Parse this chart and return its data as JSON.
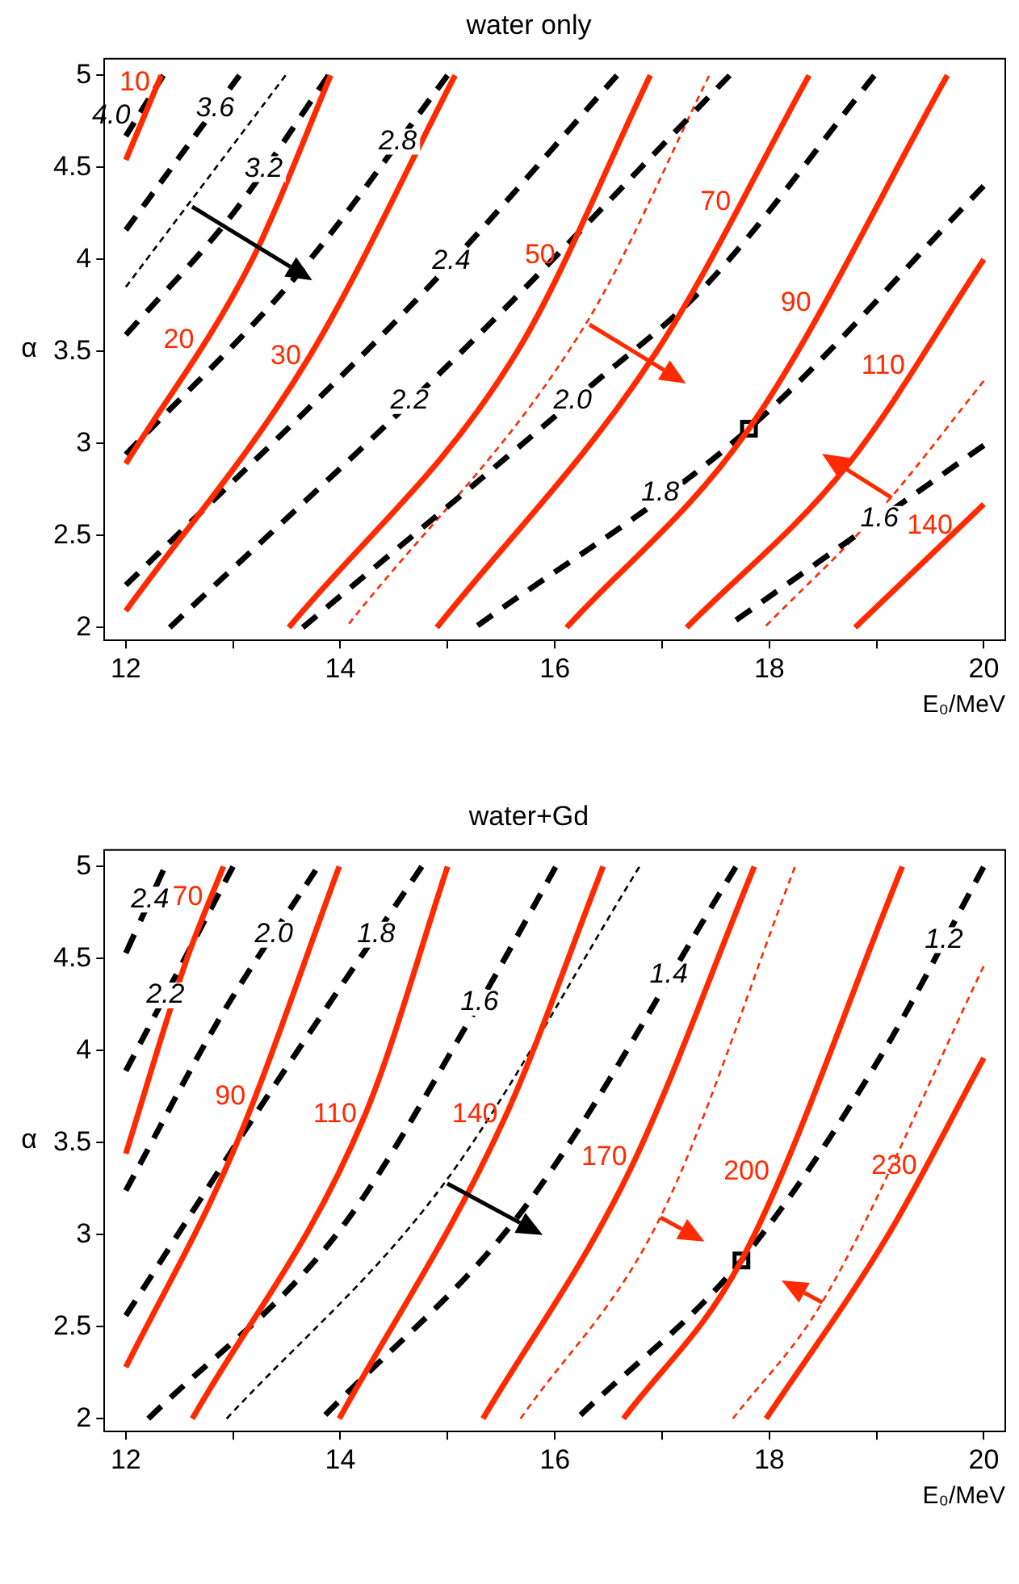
{
  "chart_data": [
    {
      "type": "line",
      "title": "water only",
      "xlabel": "E₀/MeV",
      "ylabel": "α",
      "xlim": [
        11.8,
        20.2
      ],
      "ylim": [
        1.93,
        5.09
      ],
      "xticks": [
        12,
        {
          "value": 13,
          "label": null
        },
        14,
        {
          "value": 15,
          "label": null
        },
        16,
        {
          "value": 17,
          "label": null
        },
        18,
        {
          "value": 19,
          "label": null
        },
        20
      ],
      "yticks": [
        2,
        2.5,
        3,
        3.5,
        4,
        4.5,
        5
      ],
      "grid": false,
      "legend": false,
      "marker": "none",
      "series": [
        {
          "name": "10",
          "color": "#ff2a00",
          "line_style": "solid",
          "x": [
            12,
            12.33
          ],
          "values": [
            4.54,
            5.0
          ]
        },
        {
          "name": "20",
          "color": "#ff2a00",
          "line_style": "solid",
          "x": [
            12,
            13.18,
            13.91
          ],
          "values": [
            2.89,
            4.0,
            5.0
          ]
        },
        {
          "name": "30",
          "color": "#ff2a00",
          "line_style": "solid",
          "x": [
            12,
            13.71,
            15.07
          ],
          "values": [
            2.09,
            3.47,
            5.0
          ]
        },
        {
          "name": "50",
          "color": "#ff2a00",
          "line_style": "solid",
          "x": [
            13.52,
            15.65,
            16.89
          ],
          "values": [
            2.0,
            3.5,
            5.0
          ]
        },
        {
          "name": "70",
          "color": "#ff2a00",
          "line_style": "solid",
          "x": [
            14.9,
            16.95,
            18.37
          ],
          "values": [
            2.0,
            3.5,
            5.0
          ]
        },
        {
          "name": "90",
          "color": "#ff2a00",
          "line_style": "solid",
          "x": [
            16.11,
            17.81,
            19.66
          ],
          "values": [
            2.0,
            3.08,
            5.0
          ]
        },
        {
          "name": "110",
          "color": "#ff2a00",
          "line_style": "solid",
          "x": [
            17.23,
            18.74,
            20
          ],
          "values": [
            2.0,
            2.89,
            4.0
          ]
        },
        {
          "name": "140",
          "color": "#ff2a00",
          "line_style": "solid",
          "x": [
            18.8,
            20
          ],
          "values": [
            2.0,
            2.67
          ]
        },
        {
          "name": "4.0",
          "color": "#000000",
          "line_style": "dashed",
          "x": [
            12,
            12.35
          ],
          "values": [
            4.67,
            5.0
          ]
        },
        {
          "name": "3.6",
          "color": "#000000",
          "line_style": "dashed",
          "x": [
            12,
            13.06
          ],
          "values": [
            4.16,
            5.0
          ]
        },
        {
          "name": "3.2",
          "color": "#000000",
          "line_style": "dashed",
          "x": [
            12,
            13.0,
            13.89
          ],
          "values": [
            3.59,
            4.25,
            5.0
          ]
        },
        {
          "name": "2.8",
          "color": "#000000",
          "line_style": "dashed",
          "x": [
            12,
            13.62,
            15.0
          ],
          "values": [
            2.94,
            3.93,
            5.0
          ]
        },
        {
          "name": "2.4",
          "color": "#000000",
          "line_style": "dashed",
          "x": [
            12,
            14.79,
            16.58
          ],
          "values": [
            2.23,
            3.83,
            5.0
          ]
        },
        {
          "name": "2.2",
          "color": "#000000",
          "line_style": "dashed",
          "x": [
            12.41,
            15.1,
            17.63
          ],
          "values": [
            2.0,
            3.48,
            5.0
          ]
        },
        {
          "name": "2.0",
          "color": "#000000",
          "line_style": "dashed",
          "x": [
            13.65,
            16.33,
            17.41,
            18.98
          ],
          "values": [
            2.0,
            3.31,
            3.86,
            5.0
          ]
        },
        {
          "name": "1.8",
          "color": "#000000",
          "line_style": "dashed",
          "x": [
            15.28,
            17.81,
            20
          ],
          "values": [
            2.01,
            3.08,
            4.4
          ]
        },
        {
          "name": "1.6",
          "color": "#000000",
          "line_style": "dashed",
          "x": [
            17.69,
            20
          ],
          "values": [
            2.04,
            2.99
          ]
        },
        {
          "color": "#ff2a00",
          "line_style": "dotted",
          "x": [
            14.08,
            16.3,
            17.44
          ],
          "values": [
            2.02,
            3.66,
            5.0
          ]
        },
        {
          "color": "#ff2a00",
          "line_style": "dotted",
          "x": [
            17.97,
            19.05,
            20
          ],
          "values": [
            2.01,
            2.65,
            3.34
          ]
        },
        {
          "color": "#000000",
          "line_style": "dotted",
          "x": [
            12,
            13.49
          ],
          "values": [
            3.85,
            5.0
          ]
        },
        {
          "type": "scatter",
          "color": "#000000",
          "marker": "square",
          "x": [
            17.81
          ],
          "values": [
            3.08
          ]
        }
      ]
    },
    {
      "type": "line",
      "title": "water+Gd",
      "xlabel": "E₀/MeV",
      "ylabel": "α",
      "xlim": [
        11.8,
        20.2
      ],
      "ylim": [
        1.93,
        5.09
      ],
      "xticks": [
        12,
        {
          "value": 13,
          "label": null
        },
        14,
        {
          "value": 15,
          "label": null
        },
        16,
        {
          "value": 17,
          "label": null
        },
        18,
        {
          "value": 19,
          "label": null
        },
        20
      ],
      "yticks": [
        2,
        2.5,
        3,
        3.5,
        4,
        4.5,
        5
      ],
      "grid": false,
      "legend": false,
      "marker": "none",
      "series": [
        {
          "name": "70",
          "color": "#ff2a00",
          "line_style": "solid",
          "x": [
            12,
            12.57,
            12.91
          ],
          "values": [
            3.44,
            4.5,
            5.0
          ]
        },
        {
          "name": "90",
          "color": "#ff2a00",
          "line_style": "solid",
          "x": [
            12,
            13.0,
            13.99
          ],
          "values": [
            2.28,
            3.45,
            5.0
          ]
        },
        {
          "name": "110",
          "color": "#ff2a00",
          "line_style": "solid",
          "x": [
            12.62,
            14.23,
            15.0
          ],
          "values": [
            2.0,
            3.65,
            5.0
          ]
        },
        {
          "name": "140",
          "color": "#ff2a00",
          "line_style": "solid",
          "x": [
            13.99,
            15.53,
            16.45
          ],
          "values": [
            2.0,
            3.63,
            5.0
          ]
        },
        {
          "name": "170",
          "color": "#ff2a00",
          "line_style": "solid",
          "x": [
            15.33,
            16.7,
            17.86
          ],
          "values": [
            2.0,
            3.35,
            5.0
          ]
        },
        {
          "name": "200",
          "color": "#ff2a00",
          "line_style": "solid",
          "x": [
            16.64,
            17.74,
            19.24
          ],
          "values": [
            2.0,
            2.86,
            5.0
          ]
        },
        {
          "name": "230",
          "color": "#ff2a00",
          "line_style": "solid",
          "x": [
            17.97,
            19.11,
            20
          ],
          "values": [
            2.0,
            3.0,
            3.96
          ]
        },
        {
          "name": "2.4",
          "color": "#000000",
          "line_style": "dashed",
          "x": [
            12,
            12.35
          ],
          "values": [
            4.53,
            4.98
          ]
        },
        {
          "name": "2.2",
          "color": "#000000",
          "line_style": "dashed",
          "x": [
            12,
            13.0
          ],
          "values": [
            3.89,
            5.0
          ]
        },
        {
          "name": "2.0",
          "color": "#000000",
          "line_style": "dashed",
          "x": [
            12,
            12.88,
            13.77
          ],
          "values": [
            3.24,
            4.18,
            4.98
          ]
        },
        {
          "name": "1.8",
          "color": "#000000",
          "line_style": "dashed",
          "x": [
            12,
            13.25,
            14.76
          ],
          "values": [
            2.56,
            3.69,
            5.0
          ]
        },
        {
          "name": "1.6",
          "color": "#000000",
          "line_style": "dashed",
          "x": [
            12.21,
            13.99,
            15.22,
            16.01
          ],
          "values": [
            2.0,
            3.02,
            4.18,
            5.0
          ]
        },
        {
          "name": "1.4",
          "color": "#000000",
          "line_style": "dashed",
          "x": [
            13.86,
            15.71,
            17.69
          ],
          "values": [
            2.02,
            3.14,
            5.0
          ]
        },
        {
          "name": "1.2",
          "color": "#000000",
          "line_style": "dashed",
          "x": [
            16.24,
            17.74,
            19.04,
            20
          ],
          "values": [
            2.02,
            2.86,
            3.97,
            5.0
          ]
        },
        {
          "color": "#ff2a00",
          "line_style": "dotted",
          "x": [
            15.68,
            16.98,
            18.24
          ],
          "values": [
            2.0,
            3.09,
            5.0
          ]
        },
        {
          "color": "#ff2a00",
          "line_style": "dotted",
          "x": [
            17.66,
            18.49,
            20
          ],
          "values": [
            2.0,
            2.63,
            4.46
          ]
        },
        {
          "color": "#000000",
          "line_style": "dotted",
          "x": [
            12.94,
            14.97,
            16.79
          ],
          "values": [
            2.0,
            3.28,
            5.0
          ]
        },
        {
          "type": "scatter",
          "color": "#000000",
          "marker": "square",
          "x": [
            17.74
          ],
          "values": [
            2.86
          ]
        }
      ]
    }
  ]
}
